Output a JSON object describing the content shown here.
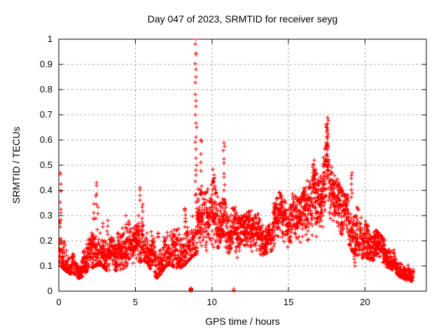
{
  "figure": {
    "title": "Day 047 of 2023, SRMTID for receiver seyg",
    "x_axis_label": "GPS time / hours",
    "y_axis_label": "SRMTID / TECUs"
  },
  "colors": {
    "marker": "#ff0000",
    "axis": "#000000",
    "grid": "#aaaaaa",
    "background": "#ffffff",
    "text": "#000000"
  },
  "chart_data": {
    "type": "scatter",
    "title": "Day 047 of 2023, SRMTID for receiver seyg",
    "xlabel": "GPS time / hours",
    "ylabel": "SRMTID / TECUs",
    "xlim": [
      0,
      24
    ],
    "ylim": [
      0,
      1
    ],
    "xticks": {
      "values": [
        0,
        5,
        10,
        15,
        20
      ],
      "labels": [
        "0",
        "5",
        "10",
        "15",
        "20"
      ]
    },
    "yticks": {
      "values": [
        0,
        0.1,
        0.2,
        0.3,
        0.4,
        0.5,
        0.6,
        0.7,
        0.8,
        0.9,
        1
      ],
      "labels": [
        "0",
        "0.1",
        "0.2",
        "0.3",
        "0.4",
        "0.5",
        "0.6",
        "0.7",
        "0.8",
        "0.9",
        "1"
      ]
    },
    "grid": {
      "show": true,
      "dashed": true
    },
    "marker": "plus",
    "marker_size_px": 7,
    "sample_step_hours": 0.0125,
    "x_end": 23.15,
    "envelope_description": "control points [hour, min_value, max_value] of the dense scatter band",
    "envelope": [
      [
        0.0,
        0.1,
        0.3
      ],
      [
        0.15,
        0.1,
        0.28
      ],
      [
        0.4,
        0.08,
        0.24
      ],
      [
        0.7,
        0.07,
        0.17
      ],
      [
        1.0,
        0.06,
        0.14
      ],
      [
        1.3,
        0.05,
        0.12
      ],
      [
        1.6,
        0.06,
        0.15
      ],
      [
        1.9,
        0.08,
        0.2
      ],
      [
        2.2,
        0.09,
        0.3
      ],
      [
        2.5,
        0.1,
        0.36
      ],
      [
        2.8,
        0.1,
        0.33
      ],
      [
        3.1,
        0.08,
        0.26
      ],
      [
        3.4,
        0.08,
        0.2
      ],
      [
        3.7,
        0.08,
        0.19
      ],
      [
        4.0,
        0.08,
        0.23
      ],
      [
        4.3,
        0.09,
        0.28
      ],
      [
        4.6,
        0.1,
        0.25
      ],
      [
        4.9,
        0.1,
        0.22
      ],
      [
        5.2,
        0.11,
        0.27
      ],
      [
        5.5,
        0.12,
        0.3
      ],
      [
        5.8,
        0.11,
        0.26
      ],
      [
        6.1,
        0.07,
        0.22
      ],
      [
        6.4,
        0.05,
        0.19
      ],
      [
        6.7,
        0.07,
        0.23
      ],
      [
        7.0,
        0.1,
        0.29
      ],
      [
        7.3,
        0.1,
        0.33
      ],
      [
        7.6,
        0.09,
        0.27
      ],
      [
        7.9,
        0.09,
        0.26
      ],
      [
        8.2,
        0.1,
        0.28
      ],
      [
        8.5,
        0.12,
        0.34
      ],
      [
        8.8,
        0.14,
        0.32
      ],
      [
        9.1,
        0.15,
        0.36
      ],
      [
        9.4,
        0.15,
        0.36
      ],
      [
        9.7,
        0.16,
        0.37
      ],
      [
        10.0,
        0.17,
        0.43
      ],
      [
        10.3,
        0.17,
        0.4
      ],
      [
        10.6,
        0.17,
        0.36
      ],
      [
        10.9,
        0.16,
        0.34
      ],
      [
        11.2,
        0.14,
        0.32
      ],
      [
        11.5,
        0.13,
        0.3
      ],
      [
        11.8,
        0.13,
        0.27
      ],
      [
        12.1,
        0.14,
        0.28
      ],
      [
        12.4,
        0.15,
        0.3
      ],
      [
        12.7,
        0.14,
        0.28
      ],
      [
        13.0,
        0.15,
        0.29
      ],
      [
        13.3,
        0.14,
        0.27
      ],
      [
        13.6,
        0.15,
        0.29
      ],
      [
        14.0,
        0.16,
        0.32
      ],
      [
        14.4,
        0.18,
        0.37
      ],
      [
        14.7,
        0.17,
        0.34
      ],
      [
        15.0,
        0.17,
        0.33
      ],
      [
        15.3,
        0.18,
        0.37
      ],
      [
        15.6,
        0.18,
        0.34
      ],
      [
        16.0,
        0.18,
        0.37
      ],
      [
        16.3,
        0.2,
        0.43
      ],
      [
        16.6,
        0.22,
        0.5
      ],
      [
        16.9,
        0.21,
        0.41
      ],
      [
        17.2,
        0.23,
        0.44
      ],
      [
        17.5,
        0.27,
        0.62
      ],
      [
        17.8,
        0.25,
        0.47
      ],
      [
        18.1,
        0.23,
        0.43
      ],
      [
        18.4,
        0.21,
        0.39
      ],
      [
        18.7,
        0.2,
        0.36
      ],
      [
        19.0,
        0.18,
        0.38
      ],
      [
        19.2,
        0.15,
        0.42
      ],
      [
        19.5,
        0.14,
        0.33
      ],
      [
        19.8,
        0.13,
        0.29
      ],
      [
        20.1,
        0.13,
        0.27
      ],
      [
        20.4,
        0.12,
        0.25
      ],
      [
        20.7,
        0.12,
        0.23
      ],
      [
        21.0,
        0.1,
        0.21
      ],
      [
        21.3,
        0.1,
        0.19
      ],
      [
        21.6,
        0.09,
        0.17
      ],
      [
        21.9,
        0.08,
        0.16
      ],
      [
        22.2,
        0.06,
        0.13
      ],
      [
        22.5,
        0.05,
        0.12
      ],
      [
        22.8,
        0.04,
        0.11
      ],
      [
        23.15,
        0.04,
        0.1
      ]
    ],
    "spikes_description": "vertical outlier strings {x hour, y_from, y_to, n points}",
    "spikes": [
      {
        "x": 0.12,
        "y0": 0.26,
        "y1": 0.47,
        "n": 7
      },
      {
        "x": 2.45,
        "y0": 0.34,
        "y1": 0.43,
        "n": 4
      },
      {
        "x": 5.3,
        "y0": 0.36,
        "y1": 0.41,
        "n": 3
      },
      {
        "x": 8.95,
        "y0": 0.33,
        "y1": 1.0,
        "n": 24
      },
      {
        "x": 9.3,
        "y0": 0.38,
        "y1": 0.6,
        "n": 6
      },
      {
        "x": 10.15,
        "y0": 0.4,
        "y1": 0.46,
        "n": 5
      },
      {
        "x": 10.8,
        "y0": 0.36,
        "y1": 0.59,
        "n": 9
      },
      {
        "x": 14.55,
        "y0": 0.34,
        "y1": 0.38,
        "n": 4
      },
      {
        "x": 16.62,
        "y0": 0.42,
        "y1": 0.5,
        "n": 7
      },
      {
        "x": 17.55,
        "y0": 0.45,
        "y1": 0.69,
        "n": 16
      },
      {
        "x": 19.15,
        "y0": 0.36,
        "y1": 0.47,
        "n": 6
      },
      {
        "x": 19.3,
        "y0": 0.1,
        "y1": 0.14,
        "n": 3
      },
      {
        "x": 20.2,
        "y0": 0.23,
        "y1": 0.26,
        "n": 3
      }
    ],
    "zero_clusters_description": "points lying on the x-axis (value ~ 0)",
    "zero_clusters": [
      {
        "x": 8.65,
        "n": 9,
        "spread": 0.09
      },
      {
        "x": 11.4,
        "n": 2,
        "spread": 0.12
      }
    ]
  }
}
